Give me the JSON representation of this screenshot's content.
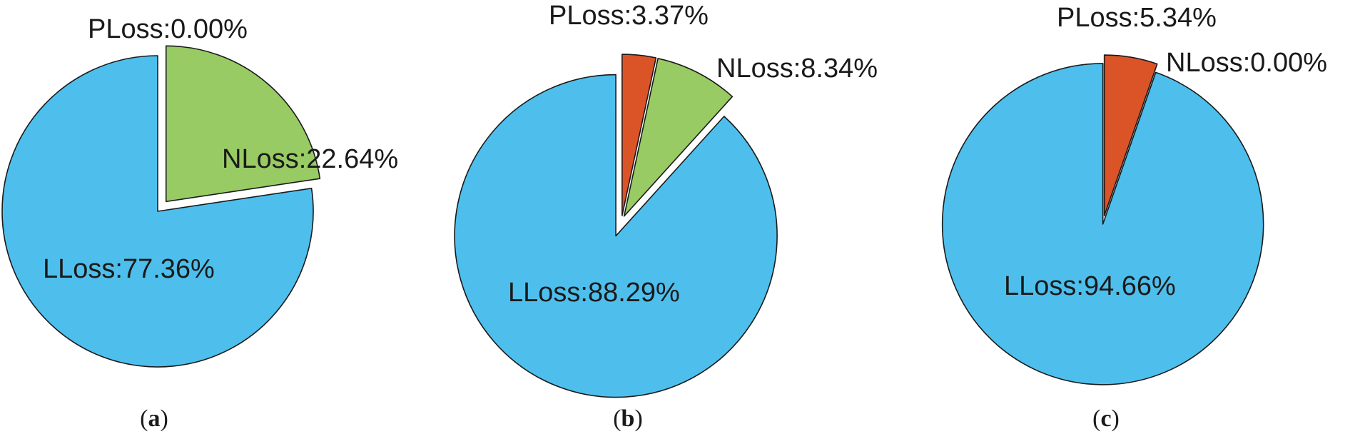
{
  "chart_data": [
    {
      "type": "pie",
      "panel_label": "a",
      "slices": [
        {
          "name": "PLoss",
          "value": 0.0,
          "label": "PLoss:0.00%",
          "color": "#DB5427"
        },
        {
          "name": "NLoss",
          "value": 22.64,
          "label": "NLoss:22.64%",
          "color": "#98CB64"
        },
        {
          "name": "LLoss",
          "value": 77.36,
          "label": "LLoss:77.36%",
          "color": "#4EBFEC"
        }
      ]
    },
    {
      "type": "pie",
      "panel_label": "b",
      "slices": [
        {
          "name": "PLoss",
          "value": 3.37,
          "label": "PLoss:3.37%",
          "color": "#DB5427"
        },
        {
          "name": "NLoss",
          "value": 8.34,
          "label": "NLoss:8.34%",
          "color": "#98CB64"
        },
        {
          "name": "LLoss",
          "value": 88.29,
          "label": "LLoss:88.29%",
          "color": "#4EBFEC"
        }
      ]
    },
    {
      "type": "pie",
      "panel_label": "c",
      "slices": [
        {
          "name": "PLoss",
          "value": 5.34,
          "label": "PLoss:5.34%",
          "color": "#DB5427"
        },
        {
          "name": "NLoss",
          "value": 0.0,
          "label": "NLoss:0.00%",
          "color": "#98CB64"
        },
        {
          "name": "LLoss",
          "value": 94.66,
          "label": "LLoss:94.66%",
          "color": "#4EBFEC"
        }
      ]
    }
  ]
}
